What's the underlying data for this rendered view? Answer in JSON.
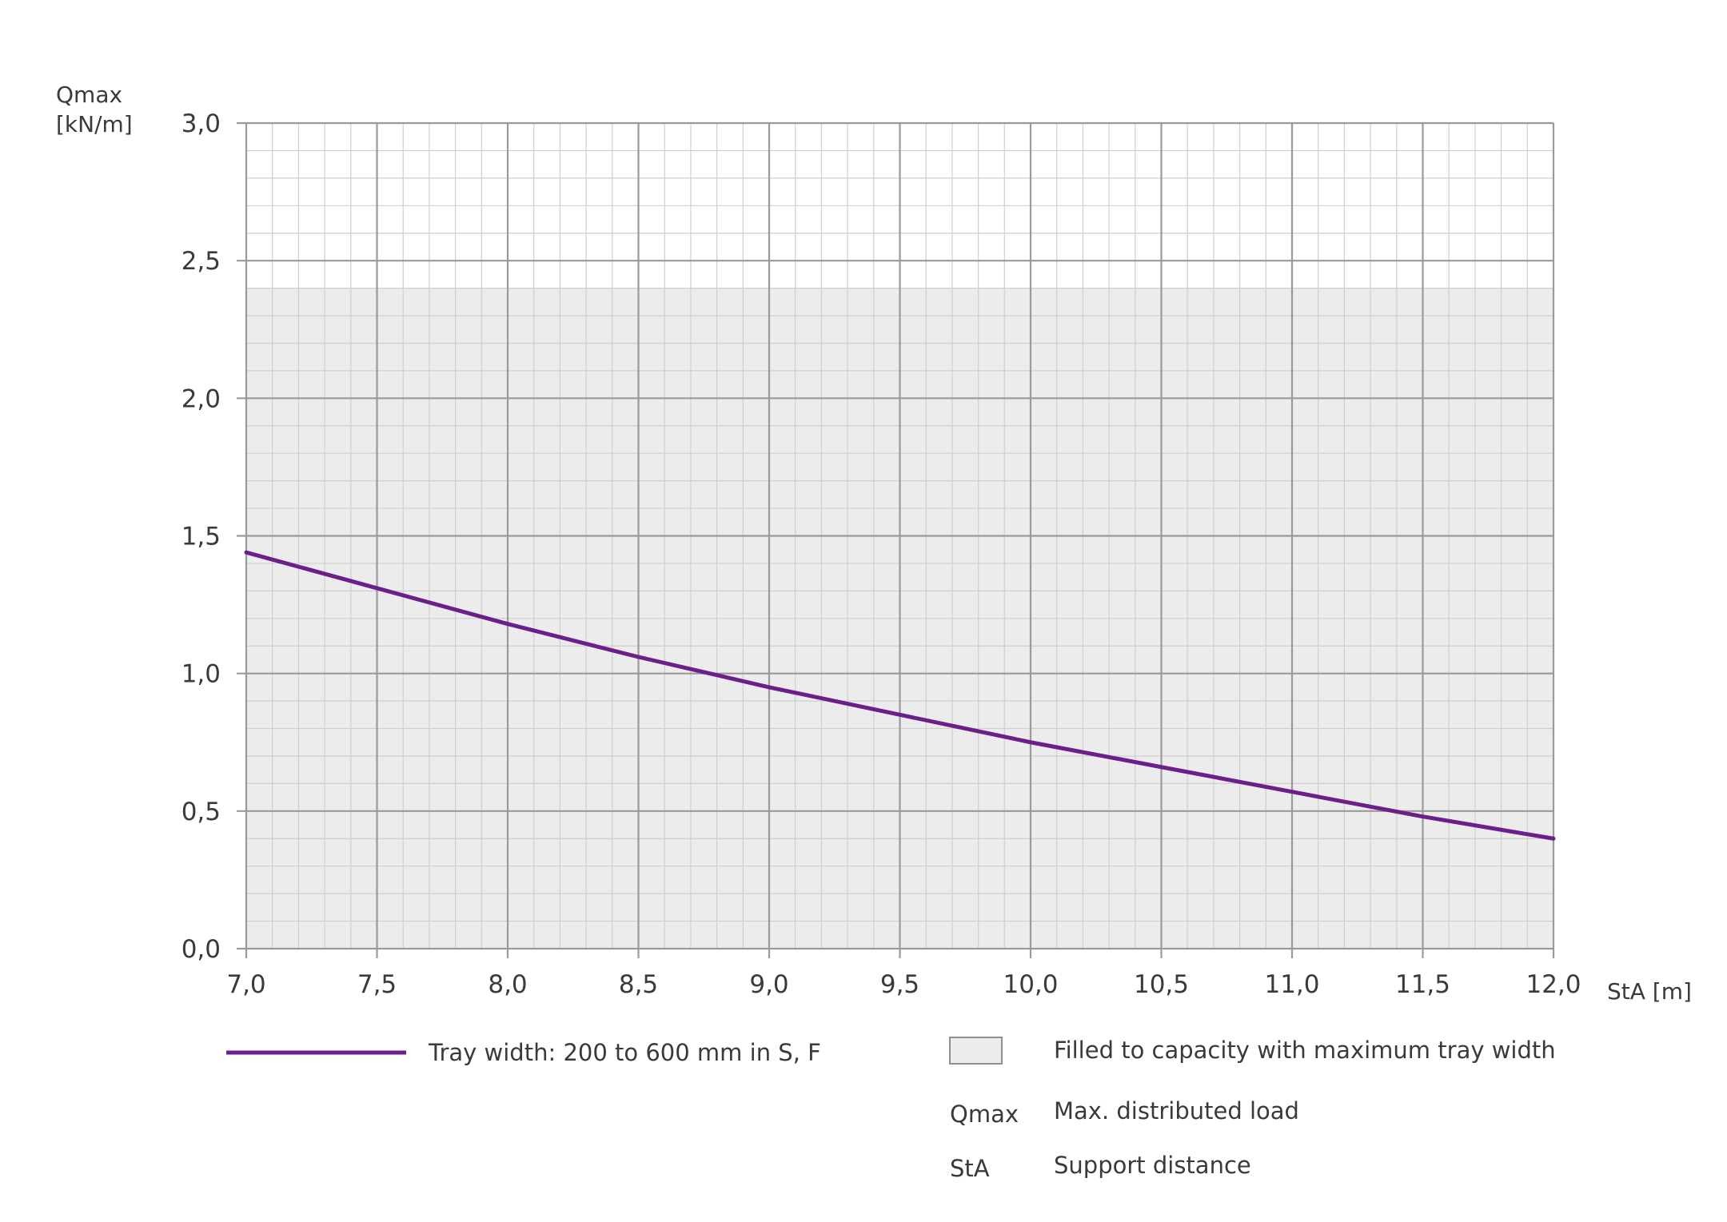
{
  "chart_data": {
    "type": "line",
    "ylabel_line1": "Qmax",
    "ylabel_line2": "[kN/m]",
    "xlabel": "StA [m]",
    "xlim": [
      7.0,
      12.0
    ],
    "ylim": [
      0.0,
      3.0
    ],
    "x_ticks": [
      "7,0",
      "7,5",
      "8,0",
      "8,5",
      "9,0",
      "9,5",
      "10,0",
      "10,5",
      "11,0",
      "11,5",
      "12,0"
    ],
    "y_ticks": [
      "0,0",
      "0,5",
      "1,0",
      "1,5",
      "2,0",
      "2,5",
      "3,0"
    ],
    "x_tick_values": [
      7.0,
      7.5,
      8.0,
      8.5,
      9.0,
      9.5,
      10.0,
      10.5,
      11.0,
      11.5,
      12.0
    ],
    "y_tick_values": [
      0.0,
      0.5,
      1.0,
      1.5,
      2.0,
      2.5,
      3.0
    ],
    "minor_grid_step_x": 0.1,
    "minor_grid_step_y": 0.1,
    "grid": true,
    "filled_region": {
      "y_max": 2.4,
      "color": "#ececec"
    },
    "series": [
      {
        "name": "Tray width: 200 to 600 mm in S, F",
        "color": "#6a1f8a",
        "x": [
          7.0,
          7.5,
          8.0,
          8.5,
          9.0,
          9.5,
          10.0,
          10.5,
          11.0,
          11.5,
          12.0
        ],
        "y": [
          1.44,
          1.31,
          1.18,
          1.06,
          0.95,
          0.85,
          0.75,
          0.66,
          0.57,
          0.48,
          0.4
        ]
      }
    ]
  },
  "legend": {
    "line_label": "Tray width: 200 to 600 mm in S, F",
    "fill_label": "Filled to capacity with maximum tray width",
    "abbr": [
      {
        "term": "Qmax",
        "definition": "Max. distributed load"
      },
      {
        "term": "StA",
        "definition": "Support distance"
      }
    ]
  },
  "colors": {
    "major_grid": "#9a9a9a",
    "minor_grid": "#cfcfcf",
    "line": "#6a1f8a",
    "fill": "#ececec"
  }
}
